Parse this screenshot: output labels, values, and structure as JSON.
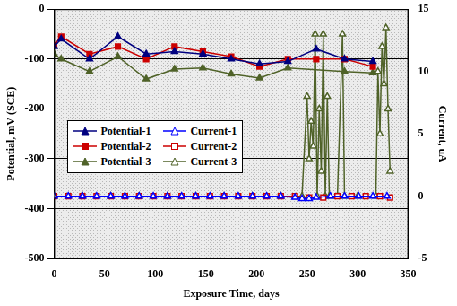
{
  "chart_data": {
    "type": "line",
    "x_label": "Exposure Time, days",
    "y_label": "Potential, mV (SCE)",
    "y2_label": "Current, uA",
    "xlim": [
      0,
      350
    ],
    "xticks": [
      0,
      50,
      100,
      150,
      200,
      250,
      300,
      350
    ],
    "ylim": [
      -500,
      0
    ],
    "yticks": [
      -500,
      -400,
      -300,
      -200,
      -100,
      0
    ],
    "y2lim": [
      -5,
      15
    ],
    "y2ticks": [
      -5,
      0,
      5,
      10,
      15
    ],
    "grid": "y",
    "legend": "center left",
    "series": [
      {
        "name": "Potential-1",
        "color": "#000080",
        "marker": "triangle",
        "line_style": "solid",
        "x": [
          0,
          7,
          35,
          63,
          91,
          119,
          147,
          175,
          203,
          231,
          259,
          287,
          315
        ],
        "values": [
          -75,
          -60,
          -100,
          -55,
          -90,
          -85,
          -90,
          -100,
          -110,
          -105,
          -80,
          -100,
          -105
        ]
      },
      {
        "name": "Potential-2",
        "color": "#cc0000",
        "marker": "square",
        "line_style": "solid",
        "x": [
          0,
          7,
          35,
          63,
          91,
          119,
          147,
          175,
          203,
          231,
          259,
          287,
          315
        ],
        "values": [
          -72,
          -55,
          -90,
          -75,
          -100,
          -75,
          -85,
          -95,
          -115,
          -100,
          -100,
          -100,
          -115
        ]
      },
      {
        "name": "Potential-3",
        "color": "#4f6228",
        "marker": "triangle",
        "line_style": "solid",
        "x": [
          0,
          7,
          35,
          63,
          91,
          119,
          147,
          175,
          203,
          231,
          287,
          315
        ],
        "values": [
          -90,
          -100,
          -125,
          -95,
          -140,
          -120,
          -118,
          -130,
          -138,
          -118,
          -125,
          -128
        ]
      },
      {
        "name": "Current-1",
        "color": "#0000ff",
        "marker": "open_triangle",
        "line_style": "solid",
        "axis": "y2",
        "x": [
          0,
          14,
          28,
          42,
          56,
          70,
          84,
          98,
          112,
          126,
          140,
          154,
          168,
          182,
          196,
          210,
          224,
          238,
          245,
          252,
          259,
          273,
          287,
          301,
          315,
          329
        ],
        "values": [
          0,
          0,
          0,
          0,
          0,
          0,
          0,
          0,
          0,
          0,
          0,
          0,
          0,
          0,
          0,
          0,
          0,
          -0.1,
          -0.2,
          -0.2,
          -0.1,
          0,
          0,
          0,
          0,
          0
        ]
      },
      {
        "name": "Current-2",
        "color": "#cc0000",
        "marker": "open_square",
        "line_style": "solid",
        "axis": "y2",
        "x": [
          0,
          14,
          28,
          42,
          56,
          70,
          84,
          98,
          112,
          126,
          140,
          154,
          168,
          182,
          196,
          210,
          224,
          238,
          252,
          266,
          280,
          294,
          308,
          322,
          332
        ],
        "values": [
          0,
          0,
          0,
          0,
          0,
          0,
          0,
          0,
          0,
          0,
          0,
          0,
          0,
          0,
          0,
          0,
          0,
          0,
          -0.1,
          -0.1,
          0,
          0,
          0,
          0,
          -0.1
        ]
      },
      {
        "name": "Current-3",
        "color": "#4f6228",
        "marker": "open_triangle",
        "line_style": "solid",
        "axis": "y2",
        "x": [
          0,
          28,
          56,
          84,
          112,
          140,
          168,
          196,
          224,
          245,
          250,
          252,
          254,
          256,
          258,
          260,
          262,
          264,
          266,
          268,
          270,
          272,
          280,
          285,
          287,
          300,
          318,
          320,
          322,
          324,
          326,
          328,
          330,
          332
        ],
        "values": [
          0,
          0,
          0,
          0,
          0,
          0,
          0,
          0,
          0,
          0,
          8,
          3,
          6,
          4,
          13,
          0,
          7,
          2,
          13,
          0,
          8,
          0,
          0,
          13,
          0,
          0,
          0,
          10,
          5,
          12,
          9,
          13.5,
          7,
          2
        ]
      }
    ]
  }
}
